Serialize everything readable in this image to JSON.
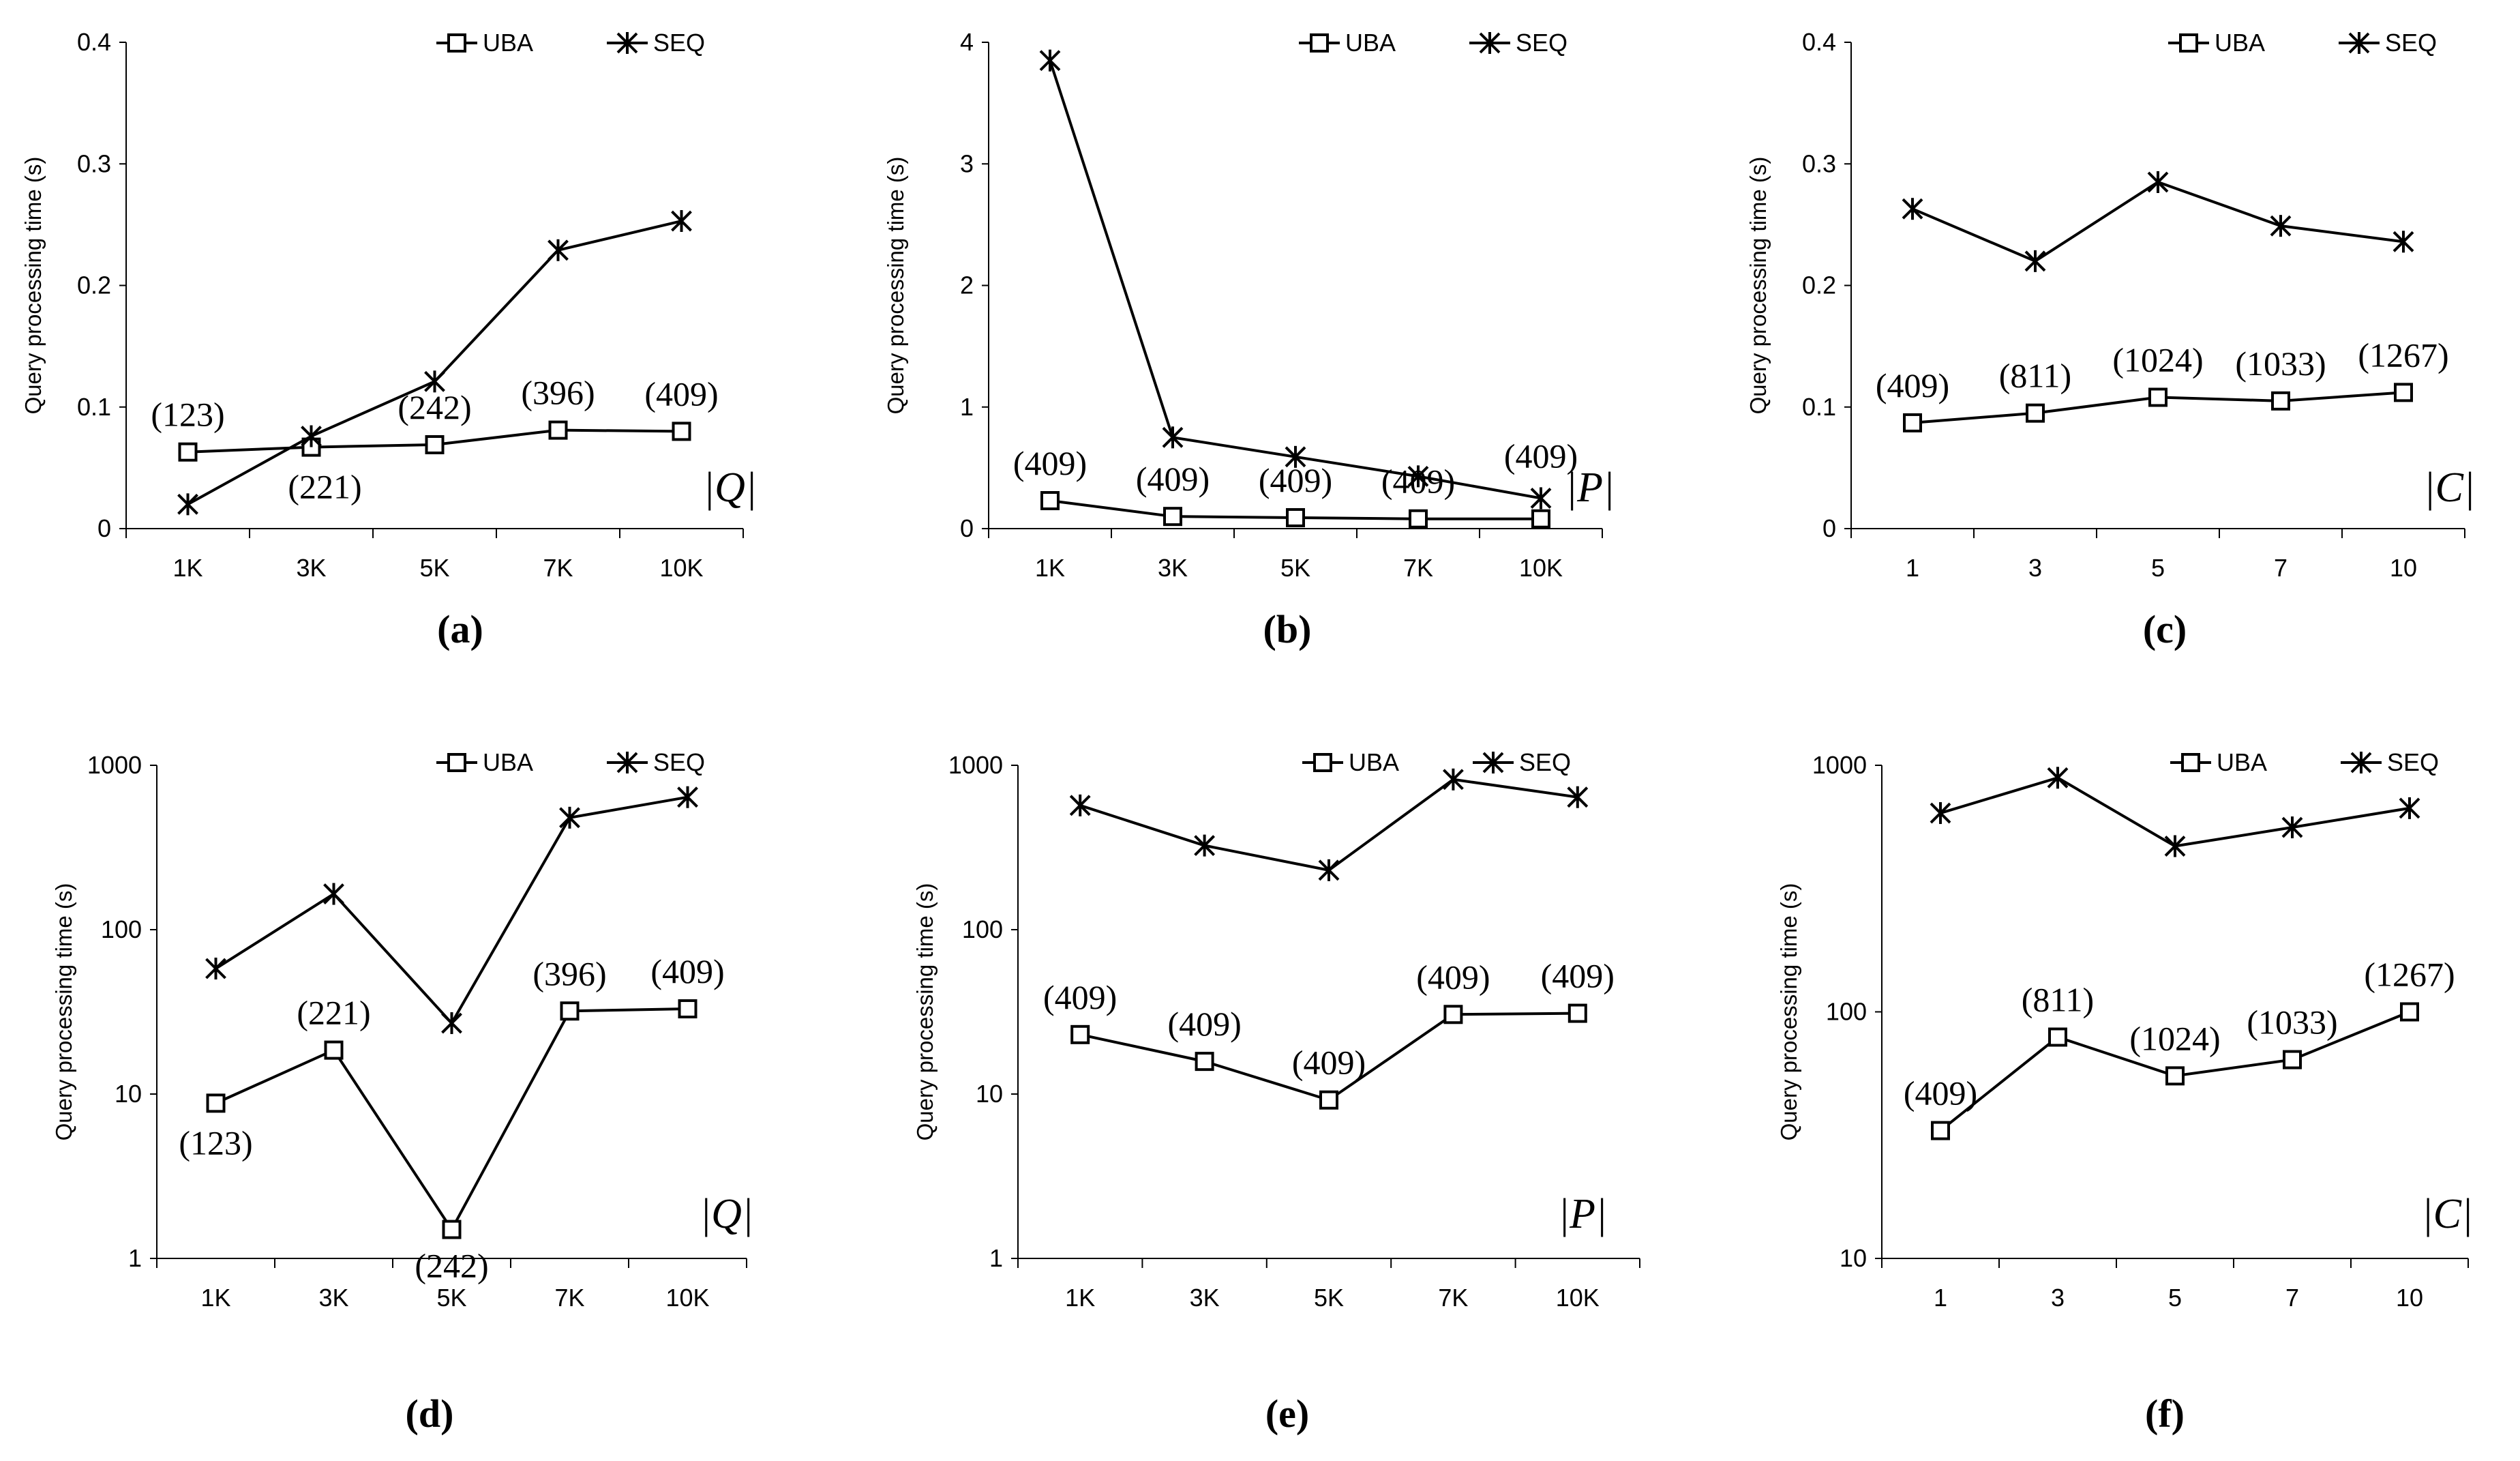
{
  "chart_data": [
    {
      "id": "a",
      "caption": "(a)",
      "type": "line",
      "scale": "linear",
      "ylabel": "Query processing time (s)",
      "axis_var": "|Q|",
      "categories": [
        "1K",
        "3K",
        "5K",
        "7K",
        "10K"
      ],
      "ylim": [
        0,
        0.4
      ],
      "yticks": [
        "0",
        "0.1",
        "0.2",
        "0.3",
        "0.4"
      ],
      "series": [
        {
          "name": "UBA",
          "marker": "square",
          "values": [
            0.063,
            0.067,
            0.069,
            0.081,
            0.08
          ]
        },
        {
          "name": "SEQ",
          "marker": "asterisk",
          "values": [
            0.02,
            0.076,
            0.121,
            0.229,
            0.253
          ]
        }
      ],
      "annotations": [
        "(123)",
        "(221)",
        "(242)",
        "(396)",
        "(409)"
      ]
    },
    {
      "id": "b",
      "caption": "(b)",
      "type": "line",
      "scale": "linear",
      "ylabel": "Query processing time (s)",
      "axis_var": "|P|",
      "categories": [
        "1K",
        "3K",
        "5K",
        "7K",
        "10K"
      ],
      "ylim": [
        0,
        4
      ],
      "yticks": [
        "0",
        "1",
        "2",
        "3",
        "4"
      ],
      "series": [
        {
          "name": "UBA",
          "marker": "square",
          "values": [
            0.23,
            0.1,
            0.09,
            0.08,
            0.08
          ]
        },
        {
          "name": "SEQ",
          "marker": "asterisk",
          "values": [
            3.85,
            0.75,
            0.59,
            0.43,
            0.25
          ]
        }
      ],
      "annotations": [
        "(409)",
        "(409)",
        "(409)",
        "(409)",
        "(409)"
      ]
    },
    {
      "id": "c",
      "caption": "(c)",
      "type": "line",
      "scale": "linear",
      "ylabel": "Query processing time (s)",
      "axis_var": "|C|",
      "categories": [
        "1",
        "3",
        "5",
        "7",
        "10"
      ],
      "ylim": [
        0,
        0.4
      ],
      "yticks": [
        "0",
        "0.1",
        "0.2",
        "0.3",
        "0.4"
      ],
      "series": [
        {
          "name": "UBA",
          "marker": "square",
          "values": [
            0.087,
            0.095,
            0.108,
            0.105,
            0.112
          ]
        },
        {
          "name": "SEQ",
          "marker": "asterisk",
          "values": [
            0.263,
            0.22,
            0.285,
            0.249,
            0.236
          ]
        }
      ],
      "annotations": [
        "(409)",
        "(811)",
        "(1024)",
        "(1033)",
        "(1267)"
      ]
    },
    {
      "id": "d",
      "caption": "(d)",
      "type": "line",
      "scale": "log",
      "ylabel": "Query processing time (s)",
      "axis_var": "|Q|",
      "categories": [
        "1K",
        "3K",
        "5K",
        "7K",
        "10K"
      ],
      "ylim": [
        1,
        1000
      ],
      "yticks": [
        "1",
        "10",
        "100",
        "1000"
      ],
      "series": [
        {
          "name": "UBA",
          "marker": "square",
          "values": [
            8.8,
            18.5,
            1.5,
            32,
            33
          ]
        },
        {
          "name": "SEQ",
          "marker": "asterisk",
          "values": [
            58,
            165,
            27,
            480,
            640
          ]
        }
      ],
      "annotations": [
        "(123)",
        "(221)",
        "(242)",
        "(396)",
        "(409)"
      ]
    },
    {
      "id": "e",
      "caption": "(e)",
      "type": "line",
      "scale": "log",
      "ylabel": "Query processing time (s)",
      "axis_var": "|P|",
      "categories": [
        "1K",
        "3K",
        "5K",
        "7K",
        "10K"
      ],
      "ylim": [
        1,
        1000
      ],
      "yticks": [
        "1",
        "10",
        "100",
        "1000"
      ],
      "series": [
        {
          "name": "UBA",
          "marker": "square",
          "values": [
            23,
            15.8,
            9.2,
            30.5,
            31
          ]
        },
        {
          "name": "SEQ",
          "marker": "asterisk",
          "values": [
            570,
            325,
            230,
            820,
            640
          ]
        }
      ],
      "annotations": [
        "(409)",
        "(409)",
        "(409)",
        "(409)",
        "(409)"
      ]
    },
    {
      "id": "f",
      "caption": "(f)",
      "type": "line",
      "scale": "log",
      "ylabel": "Query processing time (s)",
      "axis_var": "|C|",
      "categories": [
        "1",
        "3",
        "5",
        "7",
        "10"
      ],
      "ylim": [
        10,
        1000
      ],
      "yticks": [
        "10",
        "100",
        "1000"
      ],
      "series": [
        {
          "name": "UBA",
          "marker": "square",
          "values": [
            33,
            79,
            55,
            64,
            100
          ]
        },
        {
          "name": "SEQ",
          "marker": "asterisk",
          "values": [
            640,
            890,
            470,
            560,
            670
          ]
        }
      ],
      "annotations": [
        "(409)",
        "(811)",
        "(1024)",
        "(1033)",
        "(1267)"
      ]
    }
  ]
}
